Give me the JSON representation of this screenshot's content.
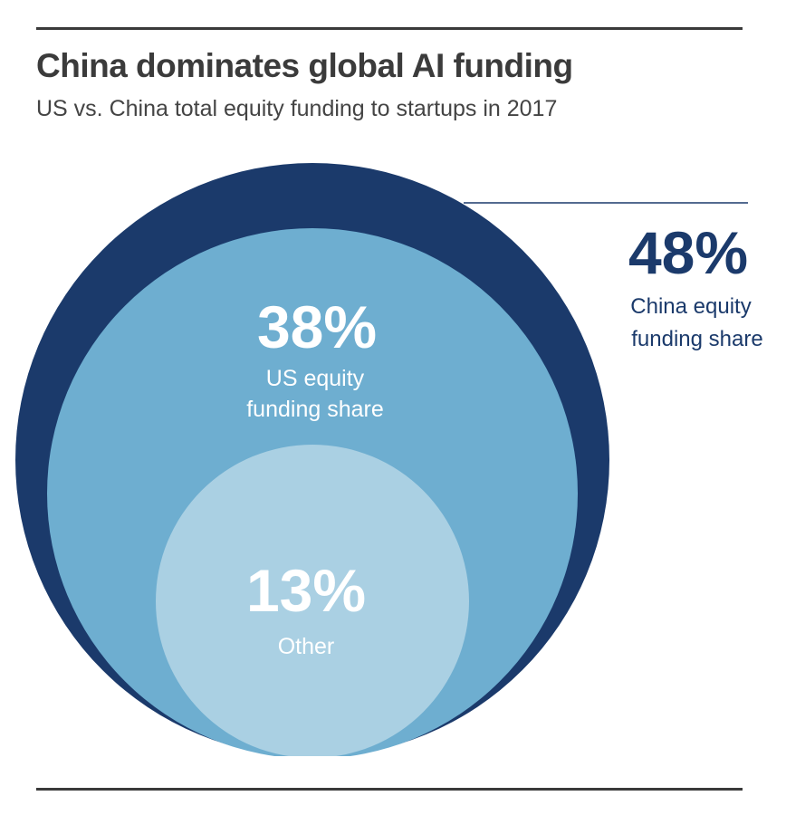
{
  "header": {
    "title": "China dominates global AI funding",
    "subtitle": "US vs. China total equity funding to startups in 2017"
  },
  "chart_data": {
    "type": "nested-circles",
    "series": [
      {
        "name": "China equity funding share",
        "label_line1": "China equity",
        "label_line2": "funding share",
        "value": 48,
        "value_label": "48%",
        "color": "#1b3a6b"
      },
      {
        "name": "US equity funding share",
        "label_line1": "US equity",
        "label_line2": "funding share",
        "value": 38,
        "value_label": "38%",
        "color": "#6eaed0"
      },
      {
        "name": "Other",
        "label_line1": "Other",
        "label_line2": "",
        "value": 13,
        "value_label": "13%",
        "color": "#aad0e3"
      }
    ]
  }
}
